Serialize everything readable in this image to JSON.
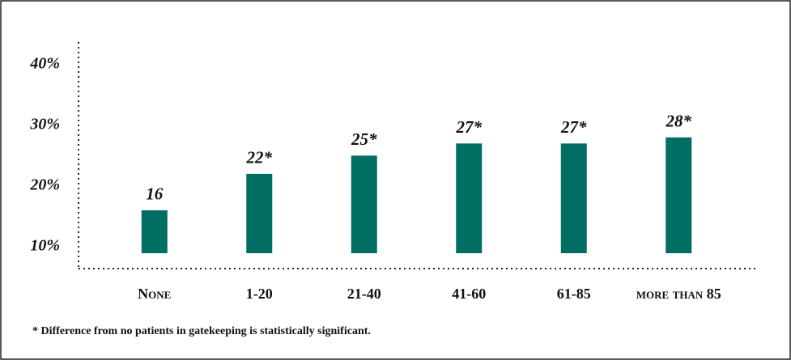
{
  "chart_data": {
    "type": "bar",
    "annotation": "* Difference from no patients in gatekeeping is statistically significant.",
    "categories": [
      "None",
      "1-20",
      "21-40",
      "41-60",
      "61-85",
      "more than 85"
    ],
    "values": [
      16,
      22,
      25,
      27,
      27,
      28
    ],
    "value_labels": [
      "16",
      "22*",
      "25*",
      "27*",
      "27*",
      "28*"
    ],
    "color": "#006e63",
    "ylim": [
      6.4,
      43.7
    ],
    "yticks": [
      {
        "value": 10,
        "label": "10%"
      },
      {
        "value": 20,
        "label": "20%"
      },
      {
        "value": 30,
        "label": "30%"
      },
      {
        "value": 40,
        "label": "40%"
      }
    ]
  }
}
